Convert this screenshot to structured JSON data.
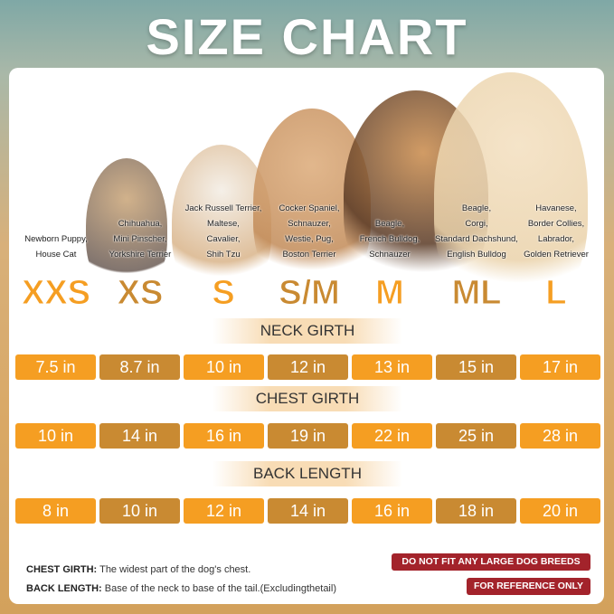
{
  "title": "SIZE CHART",
  "colors": {
    "size_light": "#f59e22",
    "size_dark": "#c98a32",
    "badge": "#a3232b"
  },
  "sizes": [
    {
      "label": "XXS",
      "breeds": [
        "Newborn Puppy,",
        "House Cat"
      ]
    },
    {
      "label": "XS",
      "breeds": [
        "Chihuahua,",
        "Mini Pinscher,",
        "Yorkshire Terrier"
      ]
    },
    {
      "label": "S",
      "breeds": [
        "Jack Russell Terrier,",
        "Maltese,",
        "Cavalier,",
        "Shih Tzu"
      ]
    },
    {
      "label": "S/M",
      "breeds": [
        "Cocker Spaniel,",
        "Schnauzer,",
        "Westie, Pug,",
        "Boston Terrier"
      ]
    },
    {
      "label": "M",
      "breeds": [
        "Beagle,",
        "French Bulldog,",
        "Schnauzer"
      ]
    },
    {
      "label": "ML",
      "breeds": [
        "Beagle,",
        "Corgi,",
        "Standard Dachshund,",
        "English Bulldog"
      ]
    },
    {
      "label": "L",
      "breeds": [
        "Havanese,",
        "Border Collies,",
        "Labrador,",
        "Golden Retriever"
      ]
    }
  ],
  "measurements": [
    {
      "name": "NECK GIRTH",
      "values": [
        "7.5 in",
        "8.7 in",
        "10 in",
        "12 in",
        "13 in",
        "15 in",
        "17 in"
      ]
    },
    {
      "name": "CHEST GIRTH",
      "values": [
        "10 in",
        "14 in",
        "16 in",
        "19 in",
        "22 in",
        "25 in",
        "28 in"
      ]
    },
    {
      "name": "BACK LENGTH",
      "values": [
        "8 in",
        "10 in",
        "12 in",
        "14 in",
        "16 in",
        "18 in",
        "20 in"
      ]
    }
  ],
  "notes": [
    {
      "term": "CHEST GIRTH:",
      "text": "The widest part of the dog's chest."
    },
    {
      "term": "BACK LENGTH:",
      "text": "Base of the neck to base of the tail.(Excludingthetail)"
    }
  ],
  "badges": [
    "DO NOT FIT ANY LARGE DOG BREEDS",
    "FOR REFERENCE ONLY"
  ]
}
